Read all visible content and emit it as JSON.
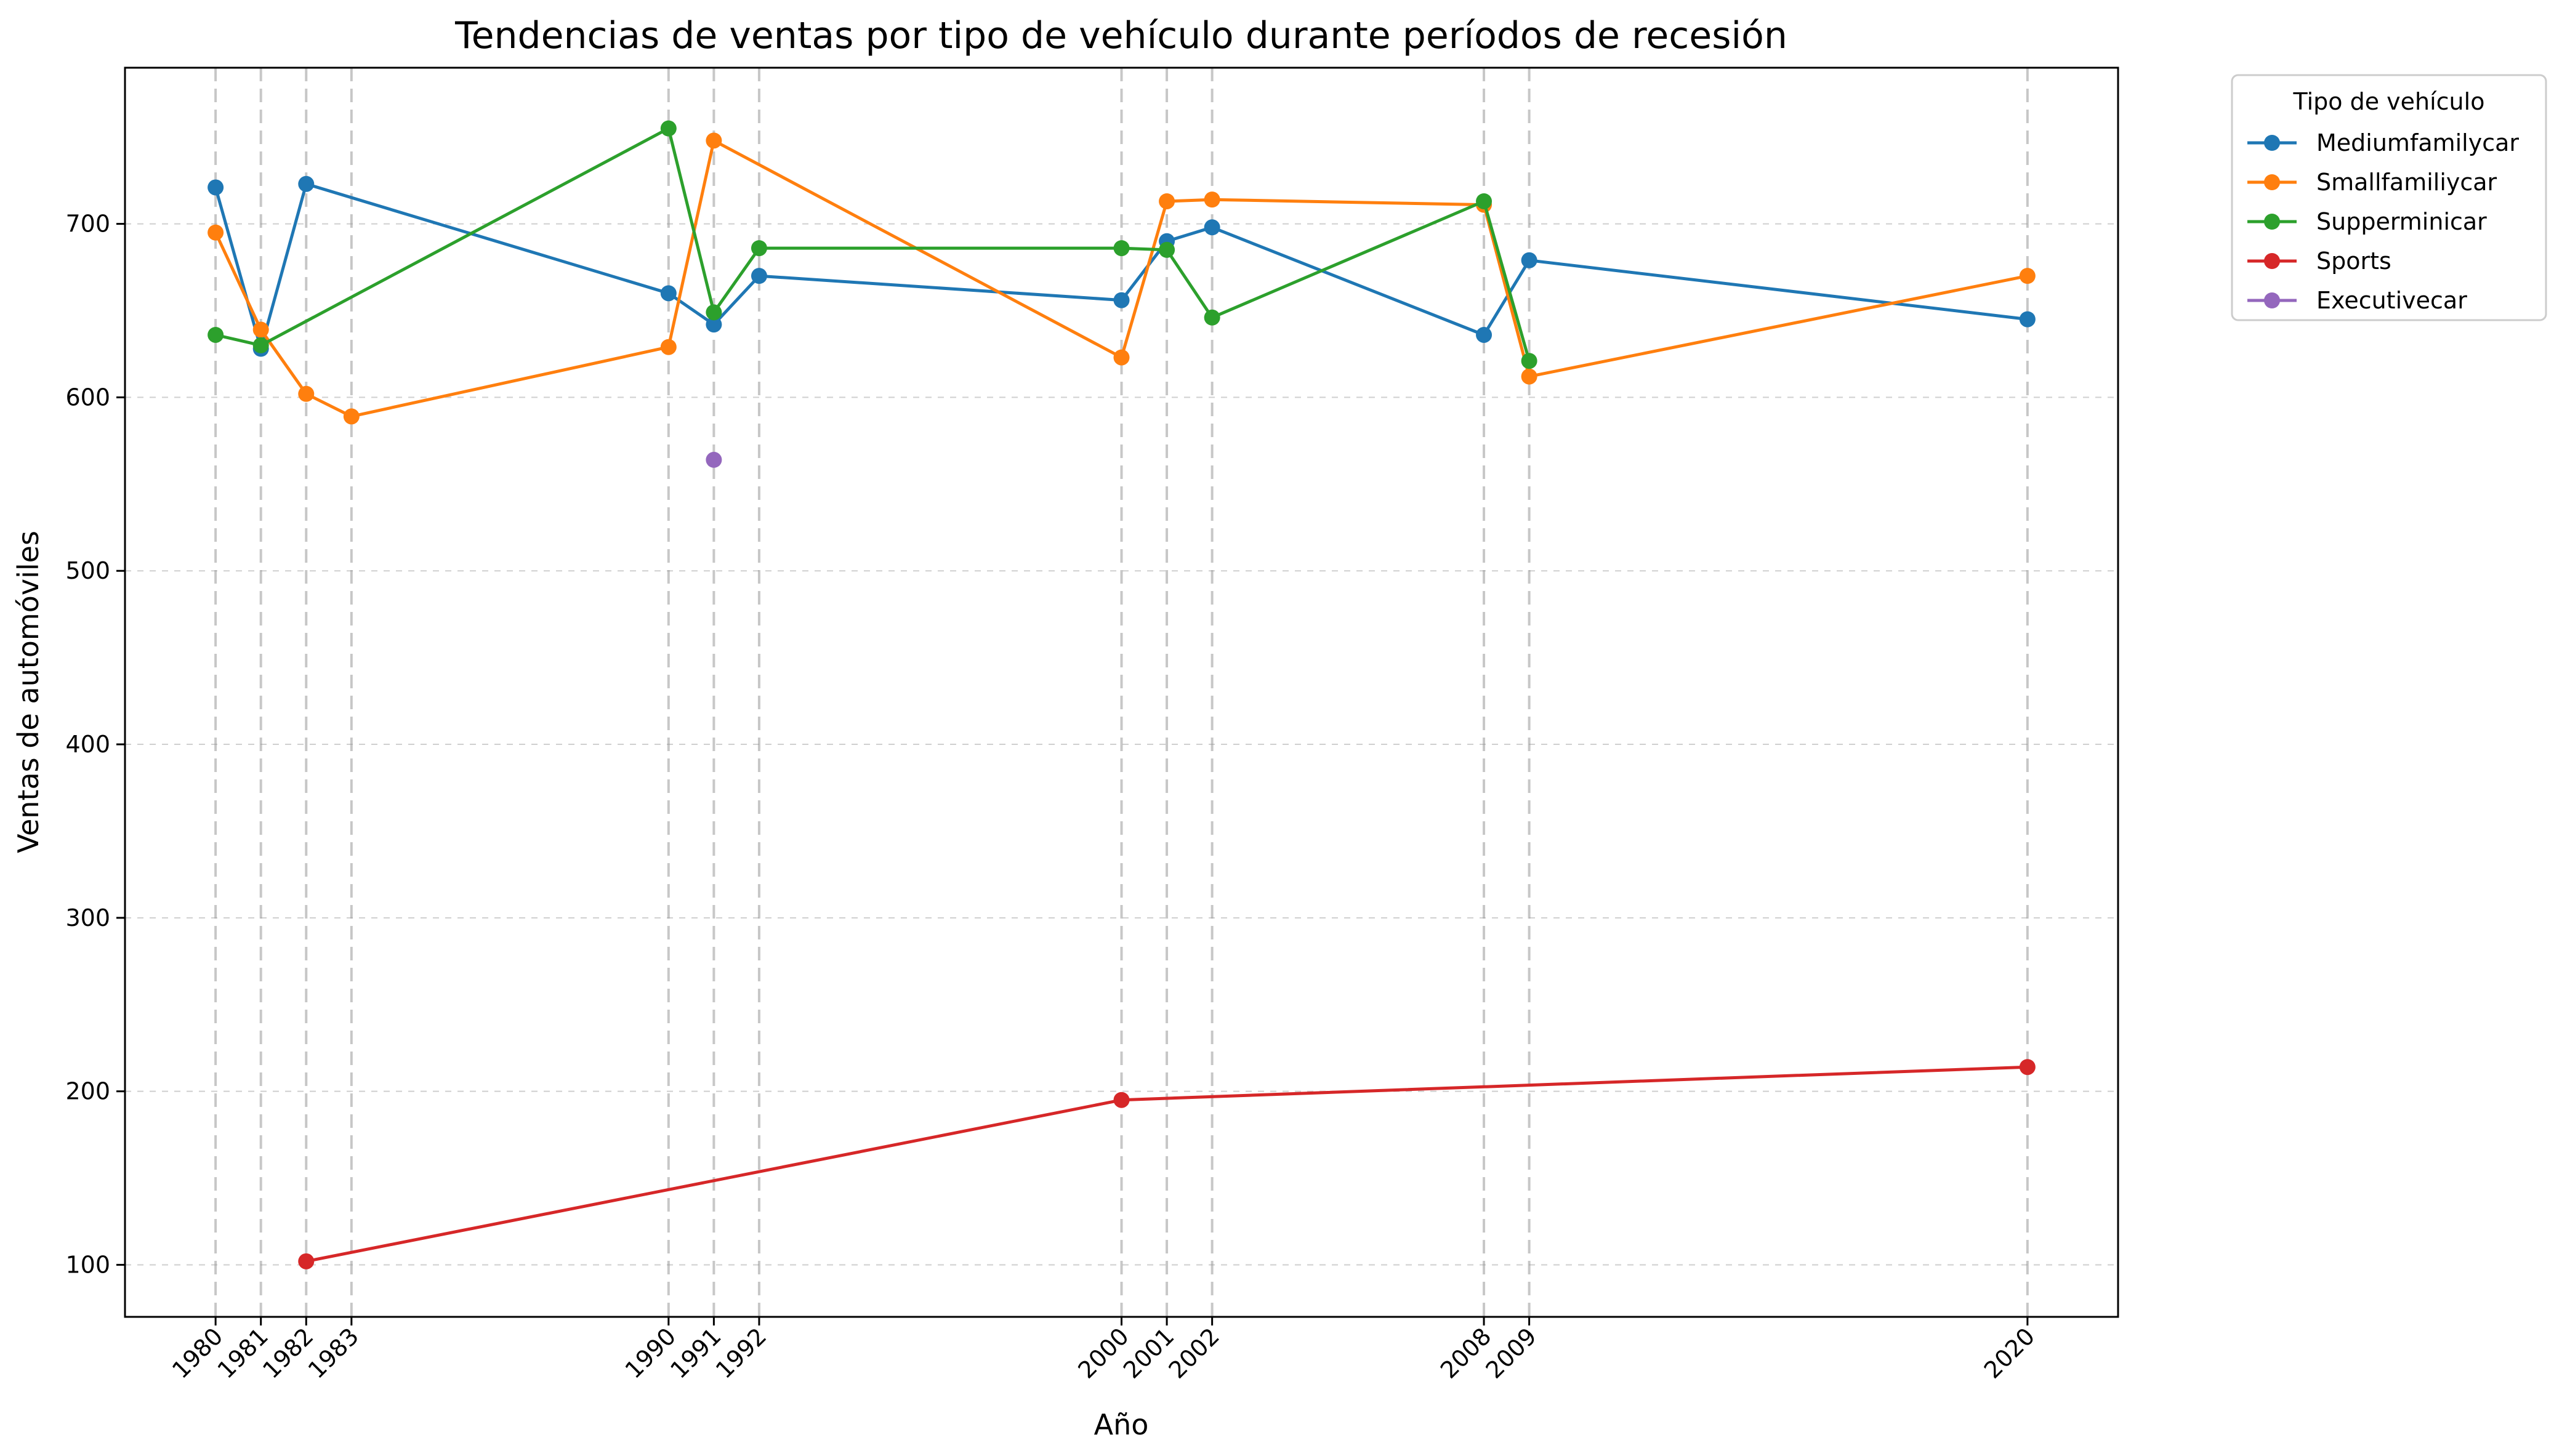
{
  "chart_data": {
    "type": "line",
    "title": "Tendencias de ventas por tipo de vehículo durante períodos de recesión",
    "xlabel": "Año",
    "ylabel": "Ventas de automóviles",
    "xlim": [
      1978,
      2022
    ],
    "ylim": [
      70,
      790
    ],
    "x_ticks": [
      1980,
      1981,
      1982,
      1983,
      1990,
      1991,
      1992,
      2000,
      2001,
      2002,
      2008,
      2009,
      2020
    ],
    "y_ticks": [
      100,
      200,
      300,
      400,
      500,
      600,
      700
    ],
    "recession_year_lines": [
      1980,
      1981,
      1982,
      1983,
      1990,
      1991,
      1992,
      2000,
      2001,
      2002,
      2008,
      2009,
      2020
    ],
    "grid": "y-dashed",
    "legend_title": "Tipo de vehículo",
    "legend_position": "outside-top-right",
    "series": [
      {
        "name": "Mediumfamilycar",
        "color": "#1f77b4",
        "points": [
          [
            1980,
            721
          ],
          [
            1981,
            628
          ],
          [
            1982,
            723
          ],
          [
            1990,
            660
          ],
          [
            1991,
            642
          ],
          [
            1992,
            670
          ],
          [
            2000,
            656
          ],
          [
            2001,
            690
          ],
          [
            2002,
            698
          ],
          [
            2008,
            636
          ],
          [
            2009,
            679
          ],
          [
            2020,
            645
          ]
        ]
      },
      {
        "name": "Smallfamiliycar",
        "color": "#ff7f0e",
        "points": [
          [
            1980,
            695
          ],
          [
            1981,
            639
          ],
          [
            1982,
            602
          ],
          [
            1983,
            589
          ],
          [
            1990,
            629
          ],
          [
            1991,
            748
          ],
          [
            2000,
            623
          ],
          [
            2001,
            713
          ],
          [
            2002,
            714
          ],
          [
            2008,
            711
          ],
          [
            2009,
            612
          ],
          [
            2020,
            670
          ]
        ]
      },
      {
        "name": "Supperminicar",
        "color": "#2ca02c",
        "points": [
          [
            1980,
            636
          ],
          [
            1981,
            630
          ],
          [
            1990,
            755
          ],
          [
            1991,
            649
          ],
          [
            1992,
            686
          ],
          [
            2000,
            686
          ],
          [
            2001,
            685
          ],
          [
            2002,
            646
          ],
          [
            2008,
            713
          ],
          [
            2009,
            621
          ]
        ]
      },
      {
        "name": "Sports",
        "color": "#d62728",
        "points": [
          [
            1982,
            102
          ],
          [
            2000,
            195
          ],
          [
            2020,
            214
          ]
        ]
      },
      {
        "name": "Executivecar",
        "color": "#9467bd",
        "points": [
          [
            1991,
            564
          ]
        ]
      }
    ]
  }
}
